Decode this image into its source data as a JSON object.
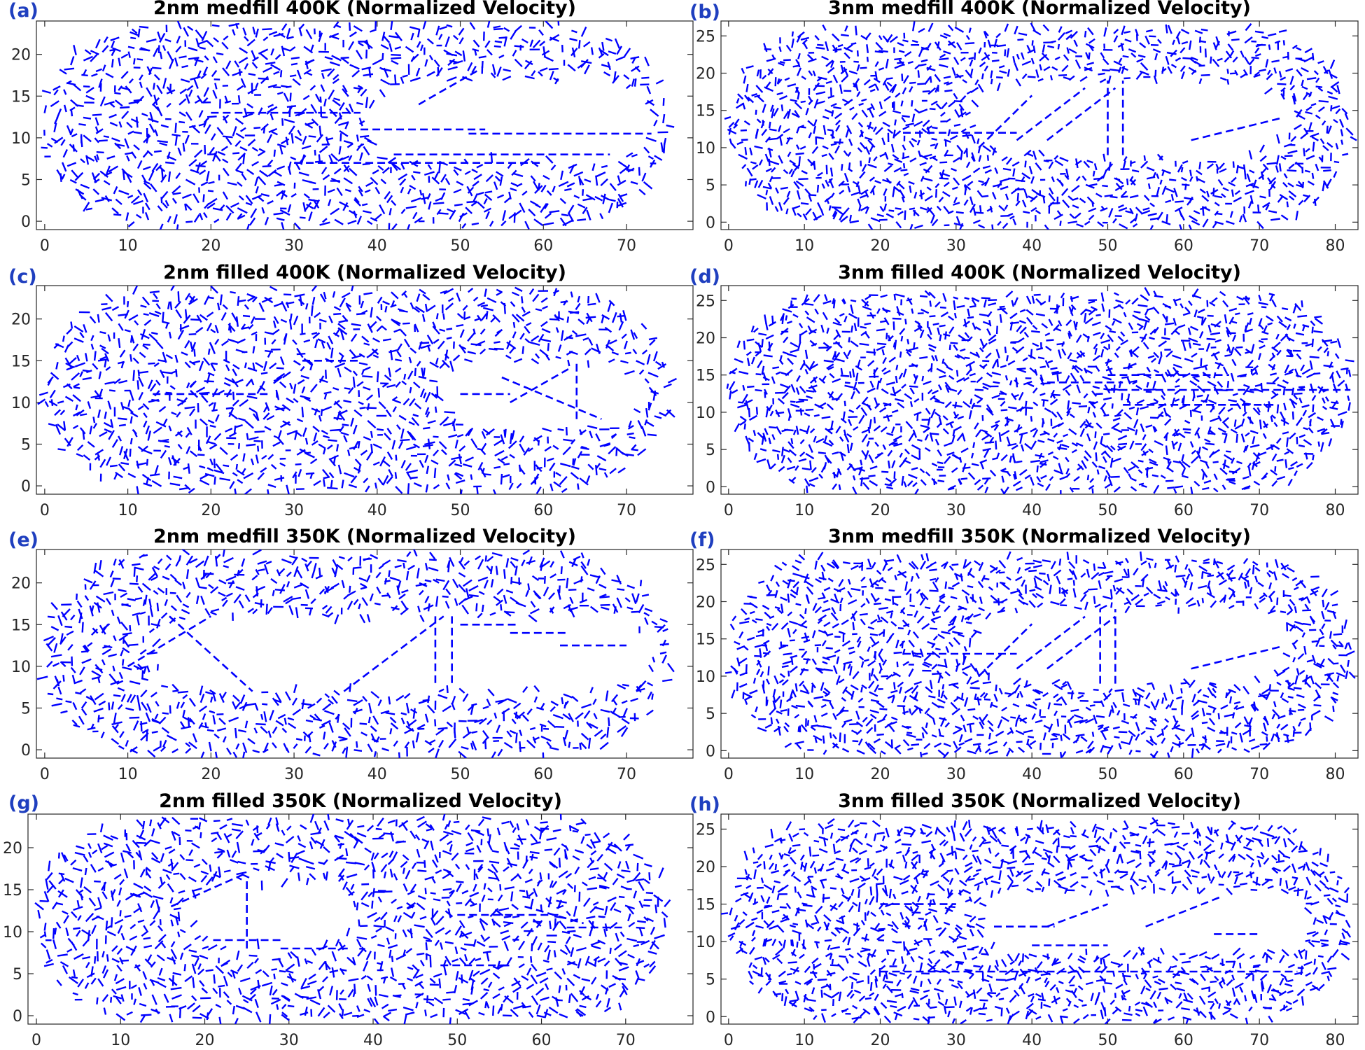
{
  "figure": {
    "panel_letters": [
      "(a)",
      "(b)",
      "(c)",
      "(d)",
      "(e)",
      "(f)",
      "(g)",
      "(h)"
    ],
    "arrow_color": "#0000ff",
    "label_color": "#1f3fbf"
  },
  "chart_data": [
    {
      "id": "a",
      "type": "quiver",
      "title": "2nm medfill 400K (Normalized Velocity)",
      "xlim": [
        -1,
        78
      ],
      "ylim": [
        -1,
        24
      ],
      "xticks": [
        0,
        10,
        20,
        30,
        40,
        50,
        60,
        70
      ],
      "yticks": [
        0,
        5,
        10,
        15,
        20
      ],
      "channel": {
        "x0": 0,
        "x1": 75,
        "y0": 0,
        "y1": 23
      },
      "void": {
        "cx": 56,
        "cy": 12,
        "rx": 17,
        "ry": 5,
        "shape": "rounded"
      },
      "streaks": [
        {
          "x": [
            20,
            38
          ],
          "y": [
            13,
            13
          ]
        },
        {
          "x": [
            38,
            53
          ],
          "y": [
            11,
            11
          ]
        },
        {
          "x": [
            42,
            68
          ],
          "y": [
            8,
            8
          ]
        },
        {
          "x": [
            51,
            73
          ],
          "y": [
            10.5,
            10.5
          ]
        },
        {
          "x": [
            45,
            52
          ],
          "y": [
            14,
            18
          ]
        },
        {
          "x": [
            30,
            60
          ],
          "y": [
            7,
            7
          ]
        }
      ]
    },
    {
      "id": "b",
      "type": "quiver",
      "title": "3nm medfill 400K (Normalized Velocity)",
      "xlim": [
        -1,
        83
      ],
      "ylim": [
        -1,
        27
      ],
      "xticks": [
        0,
        10,
        20,
        30,
        40,
        50,
        60,
        70,
        80
      ],
      "yticks": [
        0,
        5,
        10,
        15,
        20,
        25
      ],
      "channel": {
        "x0": 0,
        "x1": 82,
        "y0": 0,
        "y1": 26
      },
      "void": {
        "cx": 53,
        "cy": 14,
        "rx": 21,
        "ry": 5,
        "shape": "rounded"
      },
      "streaks": [
        {
          "x": [
            33,
            40
          ],
          "y": [
            10,
            17
          ]
        },
        {
          "x": [
            38,
            47
          ],
          "y": [
            11,
            18
          ]
        },
        {
          "x": [
            42,
            51
          ],
          "y": [
            11,
            18
          ]
        },
        {
          "x": [
            50,
            50
          ],
          "y": [
            9,
            19
          ]
        },
        {
          "x": [
            52,
            52
          ],
          "y": [
            9,
            19
          ]
        },
        {
          "x": [
            61,
            73
          ],
          "y": [
            11,
            14
          ]
        },
        {
          "x": [
            23,
            38
          ],
          "y": [
            12,
            12
          ]
        }
      ]
    },
    {
      "id": "c",
      "type": "quiver",
      "title": "2nm filled 400K (Normalized Velocity)",
      "xlim": [
        -1,
        78
      ],
      "ylim": [
        -1,
        24
      ],
      "xticks": [
        0,
        10,
        20,
        30,
        40,
        50,
        60,
        70
      ],
      "yticks": [
        0,
        5,
        10,
        15,
        20
      ],
      "channel": {
        "x0": 0,
        "x1": 75,
        "y0": 0,
        "y1": 23
      },
      "void": {
        "cx": 60,
        "cy": 11,
        "rx": 12,
        "ry": 4,
        "shape": "rounded"
      },
      "streaks": [
        {
          "x": [
            55,
            67
          ],
          "y": [
            13,
            8
          ]
        },
        {
          "x": [
            56,
            63
          ],
          "y": [
            10,
            14
          ]
        },
        {
          "x": [
            64,
            64
          ],
          "y": [
            8,
            15
          ]
        },
        {
          "x": [
            13,
            27
          ],
          "y": [
            11,
            11
          ]
        },
        {
          "x": [
            31,
            38
          ],
          "y": [
            15,
            15
          ]
        },
        {
          "x": [
            50,
            56
          ],
          "y": [
            11,
            11
          ]
        }
      ]
    },
    {
      "id": "d",
      "type": "quiver",
      "title": "3nm filled 400K (Normalized Velocity)",
      "xlim": [
        -1,
        83
      ],
      "ylim": [
        -1,
        27
      ],
      "xticks": [
        0,
        10,
        20,
        30,
        40,
        50,
        60,
        70,
        80
      ],
      "yticks": [
        0,
        5,
        10,
        15,
        20,
        25
      ],
      "channel": {
        "x0": 0,
        "x1": 82,
        "y0": 0,
        "y1": 26
      },
      "void": null,
      "streaks": [
        {
          "x": [
            50,
            66
          ],
          "y": [
            15,
            15
          ]
        },
        {
          "x": [
            50,
            66
          ],
          "y": [
            13,
            13
          ]
        },
        {
          "x": [
            52,
            72
          ],
          "y": [
            11,
            11
          ]
        },
        {
          "x": [
            64,
            82
          ],
          "y": [
            13,
            13
          ]
        },
        {
          "x": [
            42,
            52
          ],
          "y": [
            14,
            14
          ]
        }
      ]
    },
    {
      "id": "e",
      "type": "quiver",
      "title": "2nm medfill 350K (Normalized Velocity)",
      "xlim": [
        -1,
        78
      ],
      "ylim": [
        -1,
        24
      ],
      "xticks": [
        0,
        10,
        20,
        30,
        40,
        50,
        60,
        70
      ],
      "yticks": [
        0,
        5,
        10,
        15,
        20
      ],
      "channel": {
        "x0": 0,
        "x1": 75,
        "y0": 0,
        "y1": 23
      },
      "void": {
        "cx": 43,
        "cy": 11.5,
        "rx": 30,
        "ry": 4.5,
        "shape": "rounded"
      },
      "streaks": [
        {
          "x": [
            10,
            20
          ],
          "y": [
            10,
            16
          ]
        },
        {
          "x": [
            15,
            25
          ],
          "y": [
            16,
            7
          ]
        },
        {
          "x": [
            36,
            48
          ],
          "y": [
            7,
            16
          ]
        },
        {
          "x": [
            47,
            47
          ],
          "y": [
            8,
            16
          ]
        },
        {
          "x": [
            49,
            49
          ],
          "y": [
            8,
            16
          ]
        },
        {
          "x": [
            50,
            57
          ],
          "y": [
            15,
            15
          ]
        },
        {
          "x": [
            56,
            63
          ],
          "y": [
            14,
            14
          ]
        },
        {
          "x": [
            62,
            70
          ],
          "y": [
            12.5,
            12.5
          ]
        }
      ]
    },
    {
      "id": "f",
      "type": "quiver",
      "title": "3nm medfill 350K (Normalized Velocity)",
      "xlim": [
        -1,
        83
      ],
      "ylim": [
        -1,
        27
      ],
      "xticks": [
        0,
        10,
        20,
        30,
        40,
        50,
        60,
        70,
        80
      ],
      "yticks": [
        0,
        5,
        10,
        15,
        20,
        25
      ],
      "channel": {
        "x0": 0,
        "x1": 82,
        "y0": 0,
        "y1": 26
      },
      "void": {
        "cx": 53,
        "cy": 14,
        "rx": 21,
        "ry": 5,
        "shape": "rounded"
      },
      "streaks": [
        {
          "x": [
            33,
            40
          ],
          "y": [
            10,
            17
          ]
        },
        {
          "x": [
            38,
            47
          ],
          "y": [
            11,
            18
          ]
        },
        {
          "x": [
            42,
            51
          ],
          "y": [
            11,
            18
          ]
        },
        {
          "x": [
            49,
            49
          ],
          "y": [
            9,
            19
          ]
        },
        {
          "x": [
            51,
            51
          ],
          "y": [
            9,
            19
          ]
        },
        {
          "x": [
            61,
            73
          ],
          "y": [
            11,
            14
          ]
        },
        {
          "x": [
            23,
            38
          ],
          "y": [
            13,
            13
          ]
        }
      ]
    },
    {
      "id": "g",
      "type": "quiver",
      "title": "2nm filled 350K (Normalized Velocity)",
      "xlim": [
        -1,
        78
      ],
      "ylim": [
        -1,
        24
      ],
      "xticks": [
        0,
        10,
        20,
        30,
        40,
        50,
        60,
        70
      ],
      "yticks": [
        0,
        5,
        10,
        15,
        20
      ],
      "channel": {
        "x0": 0,
        "x1": 75,
        "y0": 0,
        "y1": 23
      },
      "void": {
        "cx": 28,
        "cy": 12,
        "rx": 10,
        "ry": 4,
        "shape": "rounded"
      },
      "streaks": [
        {
          "x": [
            16,
            25
          ],
          "y": [
            13,
            17
          ]
        },
        {
          "x": [
            25,
            25
          ],
          "y": [
            8,
            16
          ]
        },
        {
          "x": [
            21,
            29
          ],
          "y": [
            9,
            9
          ]
        },
        {
          "x": [
            29,
            37
          ],
          "y": [
            8,
            8
          ]
        },
        {
          "x": [
            50,
            62
          ],
          "y": [
            12,
            12
          ]
        },
        {
          "x": [
            58,
            65
          ],
          "y": [
            13,
            11
          ]
        },
        {
          "x": [
            63,
            70
          ],
          "y": [
            10.5,
            10.5
          ]
        },
        {
          "x": [
            48,
            56
          ],
          "y": [
            6,
            6
          ]
        }
      ]
    },
    {
      "id": "h",
      "type": "quiver",
      "title": "3nm filled 350K (Normalized Velocity)",
      "xlim": [
        -1,
        83
      ],
      "ylim": [
        -1,
        27
      ],
      "xticks": [
        0,
        10,
        20,
        30,
        40,
        50,
        60,
        70,
        80
      ],
      "yticks": [
        0,
        5,
        10,
        15,
        20,
        25
      ],
      "channel": {
        "x0": 0,
        "x1": 82,
        "y0": 0,
        "y1": 26
      },
      "void": {
        "cx": 55,
        "cy": 12.5,
        "rx": 22,
        "ry": 4,
        "shape": "rounded"
      },
      "streaks": [
        {
          "x": [
            20,
            30
          ],
          "y": [
            15,
            15
          ]
        },
        {
          "x": [
            35,
            43
          ],
          "y": [
            12,
            12
          ]
        },
        {
          "x": [
            42,
            50
          ],
          "y": [
            12,
            15
          ]
        },
        {
          "x": [
            40,
            50
          ],
          "y": [
            9.5,
            9.5
          ]
        },
        {
          "x": [
            55,
            65
          ],
          "y": [
            12,
            16
          ]
        },
        {
          "x": [
            64,
            70
          ],
          "y": [
            11,
            11
          ]
        },
        {
          "x": [
            20,
            75
          ],
          "y": [
            6,
            6
          ]
        }
      ]
    }
  ]
}
